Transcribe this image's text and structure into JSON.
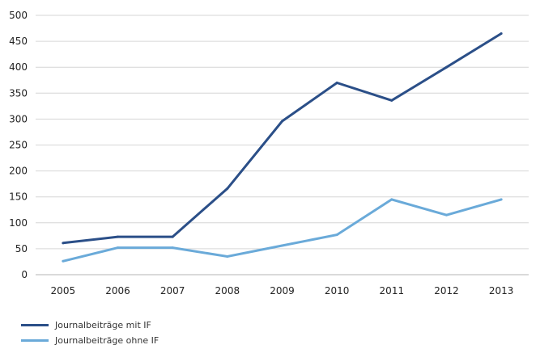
{
  "chart_data": {
    "type": "line",
    "title": "",
    "xlabel": "",
    "ylabel": "",
    "x": [
      "2005",
      "2006",
      "2007",
      "2008",
      "2009",
      "2010",
      "2011",
      "2012",
      "2013"
    ],
    "ylim": [
      0,
      500
    ],
    "yticks": [
      0,
      50,
      100,
      150,
      200,
      250,
      300,
      350,
      400,
      450,
      500
    ],
    "grid": "horizontal",
    "legend_position": "bottom-left",
    "series": [
      {
        "name": "Journalbeiträge mit IF",
        "color": "#2B4F88",
        "values": [
          61,
          73,
          73,
          166,
          296,
          370,
          336,
          400,
          465
        ]
      },
      {
        "name": "Journalbeiträge ohne IF",
        "color": "#6AAAD9",
        "values": [
          26,
          52,
          52,
          35,
          56,
          77,
          145,
          115,
          145
        ]
      }
    ]
  },
  "legend": {
    "items": [
      {
        "label": "Journalbeiträge mit IF",
        "color": "#2B4F88"
      },
      {
        "label": "Journalbeiträge ohne IF",
        "color": "#6AAAD9"
      }
    ]
  }
}
